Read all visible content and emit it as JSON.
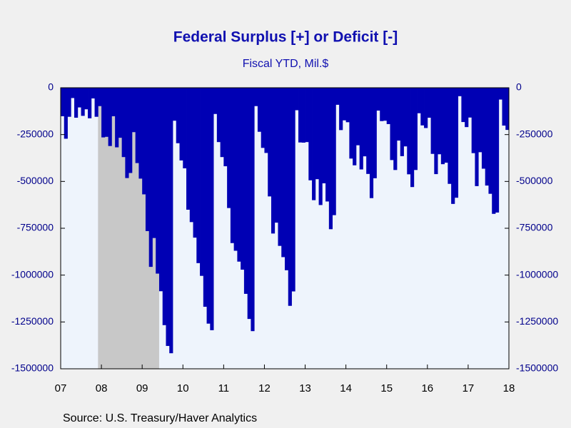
{
  "chart_data": {
    "type": "bar",
    "title": "Federal Surplus [+] or Deficit [-]",
    "subtitle": "Fiscal YTD, Mil.$",
    "source": "Source:  U.S. Treasury/Haver Analytics",
    "color": "#0000b4",
    "categories": [
      "07",
      null,
      null,
      null,
      null,
      null,
      null,
      null,
      null,
      null,
      null,
      null,
      "08",
      null,
      null,
      null,
      null,
      null,
      null,
      null,
      null,
      null,
      null,
      null,
      "09",
      null,
      null,
      null,
      null,
      null,
      null,
      null,
      null,
      null,
      null,
      null,
      "10",
      null,
      null,
      null,
      null,
      null,
      null,
      null,
      null,
      null,
      null,
      null,
      "11",
      null,
      null,
      null,
      null,
      null,
      null,
      null,
      null,
      null,
      null,
      null,
      "12",
      null,
      null,
      null,
      null,
      null,
      null,
      null,
      null,
      null,
      null,
      null,
      "13",
      null,
      null,
      null,
      null,
      null,
      null,
      null,
      null,
      null,
      null,
      null,
      "14",
      null,
      null,
      null,
      null,
      null,
      null,
      null,
      null,
      null,
      null,
      null,
      "15",
      null,
      null,
      null,
      null,
      null,
      null,
      null,
      null,
      null,
      null,
      null,
      "16",
      null,
      null,
      null,
      null,
      null,
      null,
      null,
      null,
      null,
      null,
      null,
      "17",
      null,
      null,
      null,
      null,
      null,
      null,
      null,
      null,
      null,
      null,
      null,
      "18"
    ],
    "values": [
      -152000,
      -272000,
      -155000,
      -55000,
      -160000,
      -105000,
      -150000,
      -115000,
      -163000,
      -57000,
      -155000,
      -98000,
      -265000,
      -262000,
      -311000,
      -152000,
      -318000,
      -267000,
      -370000,
      -482000,
      -455000,
      -237000,
      -402000,
      -485000,
      -569000,
      -765000,
      -956000,
      -802000,
      -992000,
      -1086000,
      -1267000,
      -1378000,
      -1417000,
      -176000,
      -296000,
      -388000,
      -430000,
      -651000,
      -717000,
      -800000,
      -936000,
      -1004000,
      -1169000,
      -1259000,
      -1294000,
      -140000,
      -290000,
      -370000,
      -419000,
      -642000,
      -829000,
      -870000,
      -928000,
      -971000,
      -1100000,
      -1234000,
      -1299000,
      -98000,
      -235000,
      -321000,
      -348000,
      -580000,
      -778000,
      -720000,
      -844000,
      -904000,
      -974000,
      -1164000,
      -1087000,
      -120000,
      -292000,
      -293000,
      -290000,
      -494000,
      -600000,
      -488000,
      -626000,
      -510000,
      -607000,
      -755000,
      -680000,
      -91000,
      -226000,
      -174000,
      -184000,
      -378000,
      -414000,
      -307000,
      -436000,
      -366000,
      -460000,
      -589000,
      -483000,
      -122000,
      -178000,
      -176000,
      -194000,
      -386000,
      -439000,
      -282000,
      -365000,
      -313000,
      -462000,
      -530000,
      -439000,
      -136000,
      -201000,
      -215000,
      -160000,
      -353000,
      -461000,
      -355000,
      -408000,
      -400000,
      -513000,
      -620000,
      -587000,
      -45000,
      -183000,
      -210000,
      -159000,
      -349000,
      -525000,
      -344000,
      -432000,
      -522000,
      -566000,
      -673000,
      -666000,
      -63000,
      -202000,
      -225000,
      -176000
    ],
    "ylim": [
      -1500000,
      0
    ],
    "yticks": [
      0,
      -250000,
      -500000,
      -750000,
      -1000000,
      -1250000,
      -1500000
    ],
    "y2lim": [
      -1500000,
      0
    ],
    "y2ticks": [
      0,
      -250000,
      -500000,
      -750000,
      -1000000,
      -1250000,
      -1500000
    ]
  }
}
